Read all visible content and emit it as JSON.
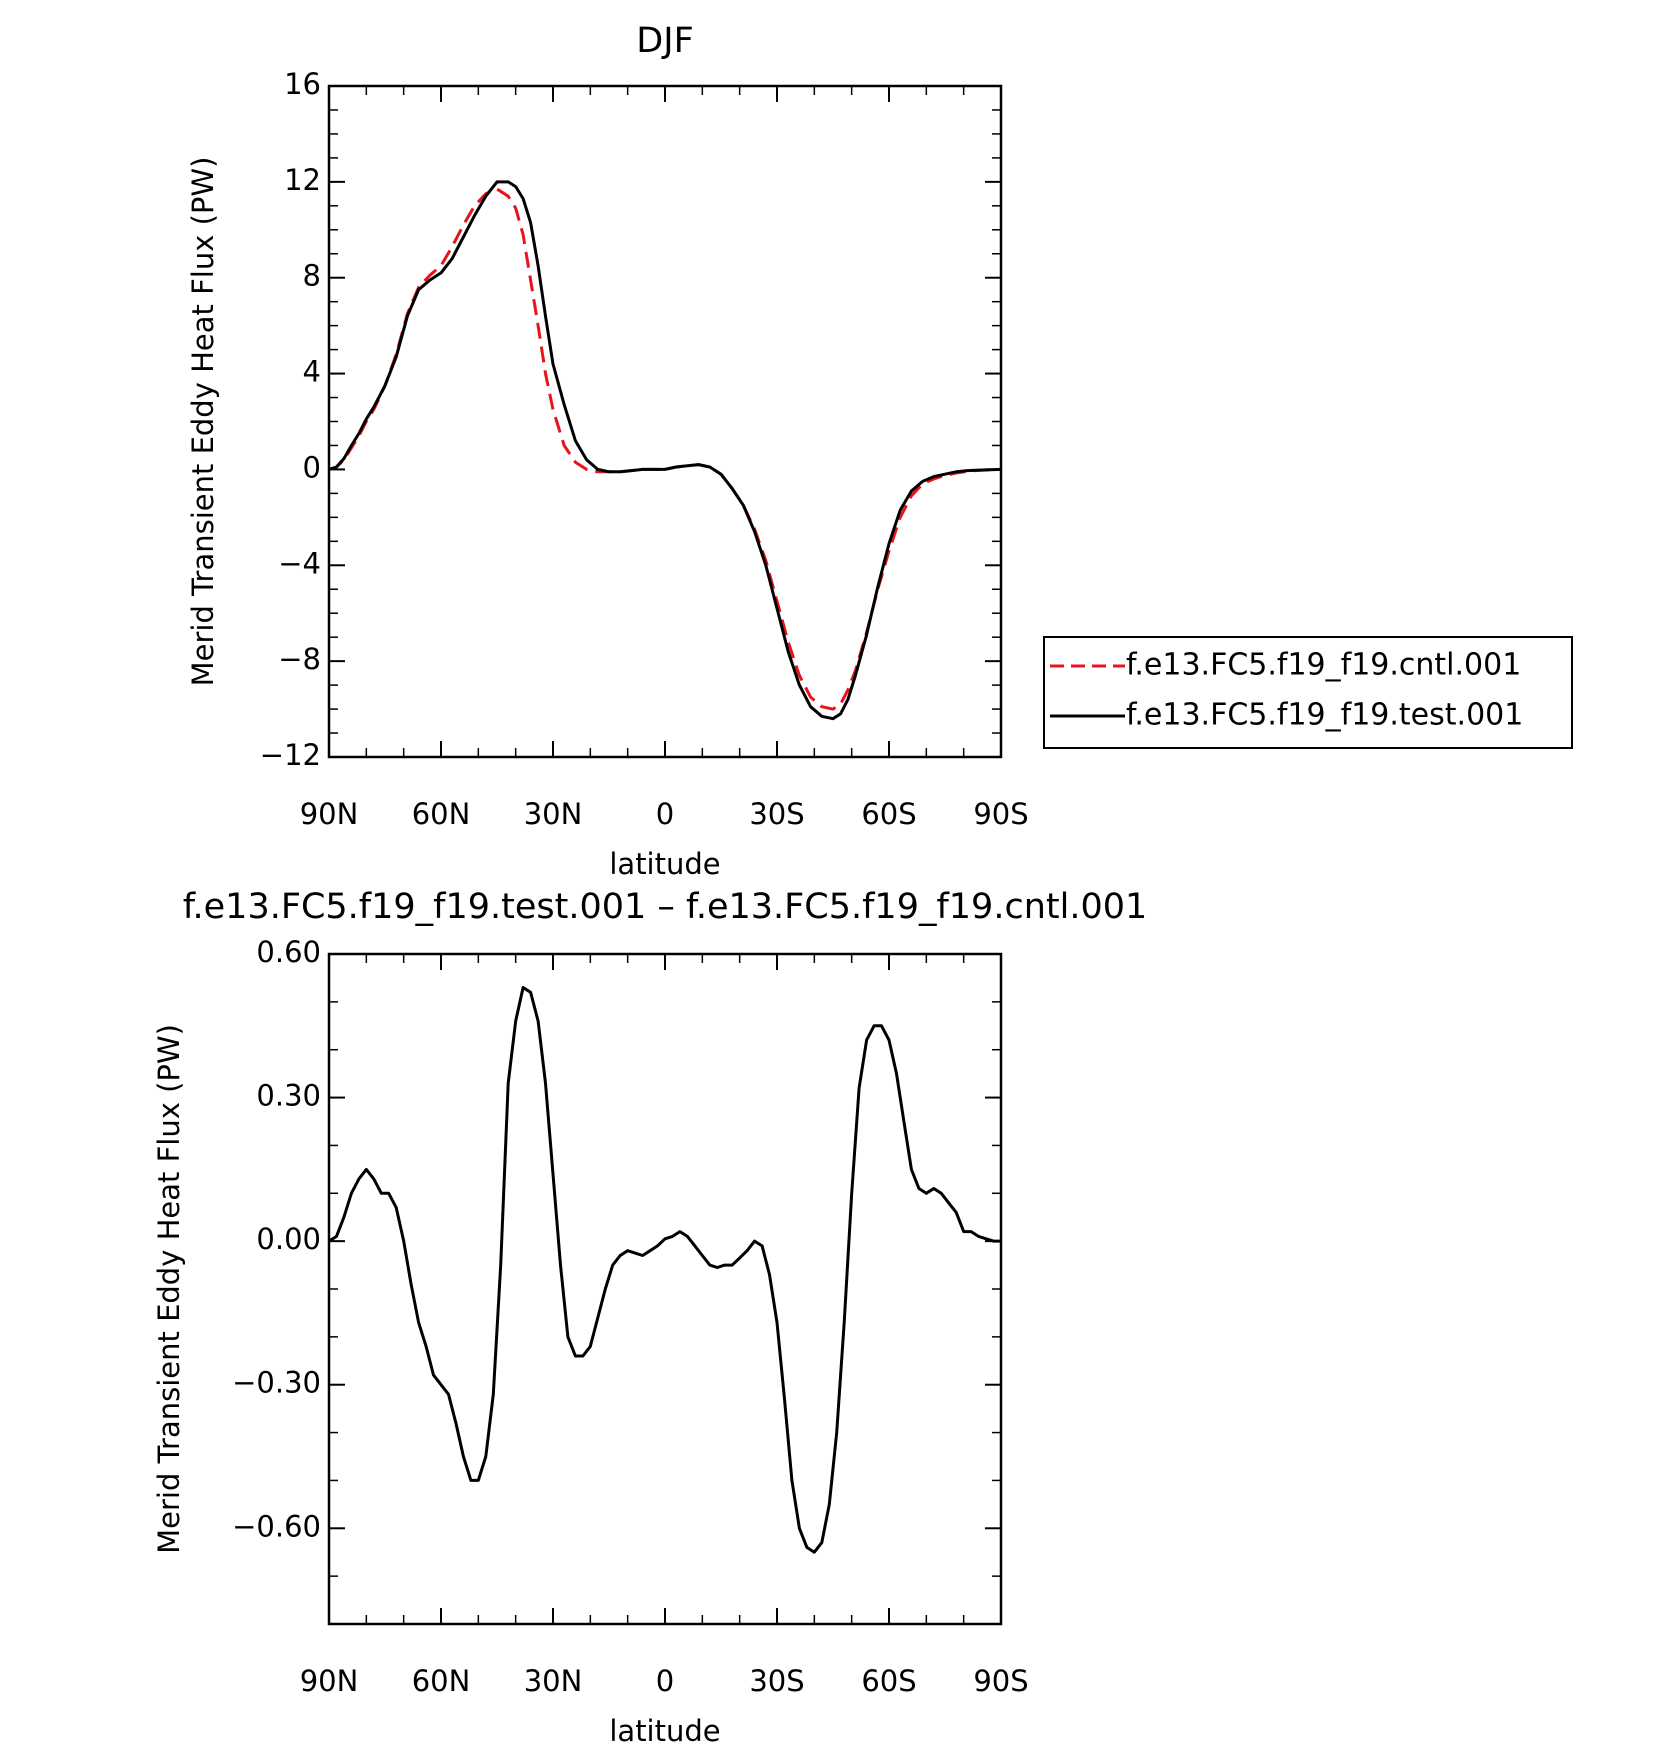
{
  "chart_data": [
    {
      "type": "line",
      "title": "DJF",
      "xlabel": "latitude",
      "ylabel": "Merid Transient Eddy Heat Flux (PW)",
      "xlim": [
        90,
        -90
      ],
      "ylim": [
        -12,
        16
      ],
      "xticks": [
        90,
        60,
        30,
        0,
        -30,
        -60,
        -90
      ],
      "xtick_labels": [
        "90N",
        "60N",
        "30N",
        "0",
        "30S",
        "60S",
        "90S"
      ],
      "yticks": [
        -12,
        -8,
        -4,
        0,
        4,
        8,
        12,
        16
      ],
      "ytick_labels": [
        "−12",
        "−8",
        "−4",
        "0",
        "4",
        "8",
        "12",
        "16"
      ],
      "grid": false,
      "legend": "right",
      "series": [
        {
          "name": "f.e13.FC5.f19_f19.cntl.001",
          "color": "#e8141b",
          "style": "dashed",
          "x": [
            90,
            88,
            86,
            84,
            82,
            80,
            78,
            75,
            72,
            69,
            66,
            63,
            60,
            57,
            54,
            51,
            48,
            45,
            42,
            40,
            38,
            36,
            34,
            32,
            30,
            27,
            24,
            21,
            18,
            15,
            12,
            9,
            6,
            3,
            0,
            -3,
            -6,
            -9,
            -12,
            -15,
            -18,
            -21,
            -24,
            -27,
            -30,
            -33,
            -36,
            -39,
            -42,
            -45,
            -47,
            -49,
            -51,
            -54,
            -57,
            -60,
            -63,
            -66,
            -69,
            -72,
            -75,
            -78,
            -81,
            -84,
            -87,
            -90
          ],
          "y": [
            0,
            0.1,
            0.4,
            0.9,
            1.4,
            2.0,
            2.5,
            3.5,
            4.8,
            6.5,
            7.6,
            8.1,
            8.5,
            9.3,
            10.2,
            11.0,
            11.5,
            11.7,
            11.4,
            10.9,
            9.8,
            7.9,
            6.0,
            4.0,
            2.5,
            1.0,
            0.3,
            0.0,
            -0.1,
            -0.1,
            -0.1,
            -0.05,
            0.0,
            0.0,
            0.0,
            0.1,
            0.15,
            0.2,
            0.1,
            -0.2,
            -0.8,
            -1.5,
            -2.5,
            -3.8,
            -5.5,
            -7.2,
            -8.6,
            -9.5,
            -9.9,
            -10.0,
            -9.8,
            -9.2,
            -8.4,
            -6.8,
            -5.0,
            -3.4,
            -2.0,
            -1.1,
            -0.6,
            -0.4,
            -0.25,
            -0.15,
            -0.08,
            -0.04,
            -0.02,
            0
          ]
        },
        {
          "name": "f.e13.FC5.f19_f19.test.001",
          "color": "#000000",
          "style": "solid",
          "x": [
            90,
            88,
            86,
            84,
            82,
            80,
            78,
            75,
            72,
            69,
            66,
            63,
            60,
            57,
            54,
            51,
            48,
            45,
            42,
            40,
            38,
            36,
            34,
            32,
            30,
            27,
            24,
            21,
            18,
            15,
            12,
            9,
            6,
            3,
            0,
            -3,
            -6,
            -9,
            -12,
            -15,
            -18,
            -21,
            -24,
            -27,
            -30,
            -33,
            -36,
            -39,
            -42,
            -45,
            -47,
            -49,
            -51,
            -54,
            -57,
            -60,
            -63,
            -66,
            -69,
            -72,
            -75,
            -78,
            -81,
            -84,
            -87,
            -90
          ],
          "y": [
            0,
            0.1,
            0.45,
            1.0,
            1.5,
            2.1,
            2.6,
            3.5,
            4.7,
            6.4,
            7.5,
            7.9,
            8.2,
            8.8,
            9.7,
            10.6,
            11.4,
            12.0,
            12.0,
            11.8,
            11.3,
            10.3,
            8.5,
            6.4,
            4.4,
            2.7,
            1.2,
            0.4,
            0.0,
            -0.1,
            -0.1,
            -0.05,
            0.0,
            0.0,
            0.0,
            0.1,
            0.15,
            0.2,
            0.1,
            -0.2,
            -0.8,
            -1.5,
            -2.6,
            -4.0,
            -5.8,
            -7.6,
            -9.0,
            -9.9,
            -10.3,
            -10.4,
            -10.2,
            -9.6,
            -8.6,
            -6.9,
            -4.9,
            -3.1,
            -1.7,
            -0.9,
            -0.5,
            -0.3,
            -0.2,
            -0.1,
            -0.05,
            -0.03,
            -0.01,
            0
          ]
        }
      ]
    },
    {
      "type": "line",
      "title": "f.e13.FC5.f19_f19.test.001 – f.e13.FC5.f19_f19.cntl.001",
      "xlabel": "latitude",
      "ylabel": "Merid Transient Eddy Heat Flux (PW)",
      "xlim": [
        90,
        -90
      ],
      "ylim": [
        -0.8,
        0.6
      ],
      "xticks": [
        90,
        60,
        30,
        0,
        -30,
        -60,
        -90
      ],
      "xtick_labels": [
        "90N",
        "60N",
        "30N",
        "0",
        "30S",
        "60S",
        "90S"
      ],
      "yticks": [
        -0.6,
        -0.3,
        0.0,
        0.3,
        0.6
      ],
      "ytick_labels": [
        "−0.60",
        "−0.30",
        "0.00",
        "0.30",
        "0.60"
      ],
      "grid": false,
      "series": [
        {
          "color": "#000000",
          "style": "solid",
          "x": [
            90,
            88,
            86,
            84,
            82,
            80,
            78,
            76,
            74,
            72,
            70,
            68,
            66,
            64,
            62,
            60,
            58,
            56,
            54,
            52,
            50,
            48,
            46,
            44,
            42,
            40,
            38,
            36,
            34,
            32,
            30,
            28,
            26,
            24,
            22,
            20,
            18,
            16,
            14,
            12,
            10,
            8,
            6,
            4,
            2,
            0,
            -2,
            -4,
            -6,
            -8,
            -10,
            -12,
            -14,
            -16,
            -18,
            -20,
            -22,
            -24,
            -26,
            -28,
            -30,
            -32,
            -34,
            -36,
            -38,
            -40,
            -42,
            -44,
            -46,
            -48,
            -50,
            -52,
            -54,
            -56,
            -58,
            -60,
            -62,
            -64,
            -66,
            -68,
            -70,
            -72,
            -74,
            -76,
            -78,
            -80,
            -82,
            -84,
            -86,
            -88,
            -90
          ],
          "y": [
            0,
            0.01,
            0.05,
            0.1,
            0.13,
            0.15,
            0.13,
            0.1,
            0.1,
            0.07,
            0.0,
            -0.09,
            -0.17,
            -0.22,
            -0.28,
            -0.3,
            -0.32,
            -0.38,
            -0.45,
            -0.5,
            -0.5,
            -0.45,
            -0.32,
            -0.05,
            0.33,
            0.46,
            0.53,
            0.52,
            0.46,
            0.33,
            0.14,
            -0.05,
            -0.2,
            -0.24,
            -0.24,
            -0.22,
            -0.16,
            -0.1,
            -0.05,
            -0.03,
            -0.02,
            -0.025,
            -0.03,
            -0.02,
            -0.01,
            0.005,
            0.01,
            0.02,
            0.01,
            -0.01,
            -0.03,
            -0.05,
            -0.055,
            -0.05,
            -0.05,
            -0.035,
            -0.02,
            0.0,
            -0.01,
            -0.07,
            -0.17,
            -0.33,
            -0.5,
            -0.6,
            -0.64,
            -0.65,
            -0.63,
            -0.55,
            -0.4,
            -0.17,
            0.1,
            0.32,
            0.42,
            0.45,
            0.45,
            0.42,
            0.35,
            0.25,
            0.15,
            0.11,
            0.1,
            0.11,
            0.1,
            0.08,
            0.06,
            0.02,
            0.02,
            0.01,
            0.005,
            0.0,
            0
          ]
        }
      ]
    }
  ]
}
